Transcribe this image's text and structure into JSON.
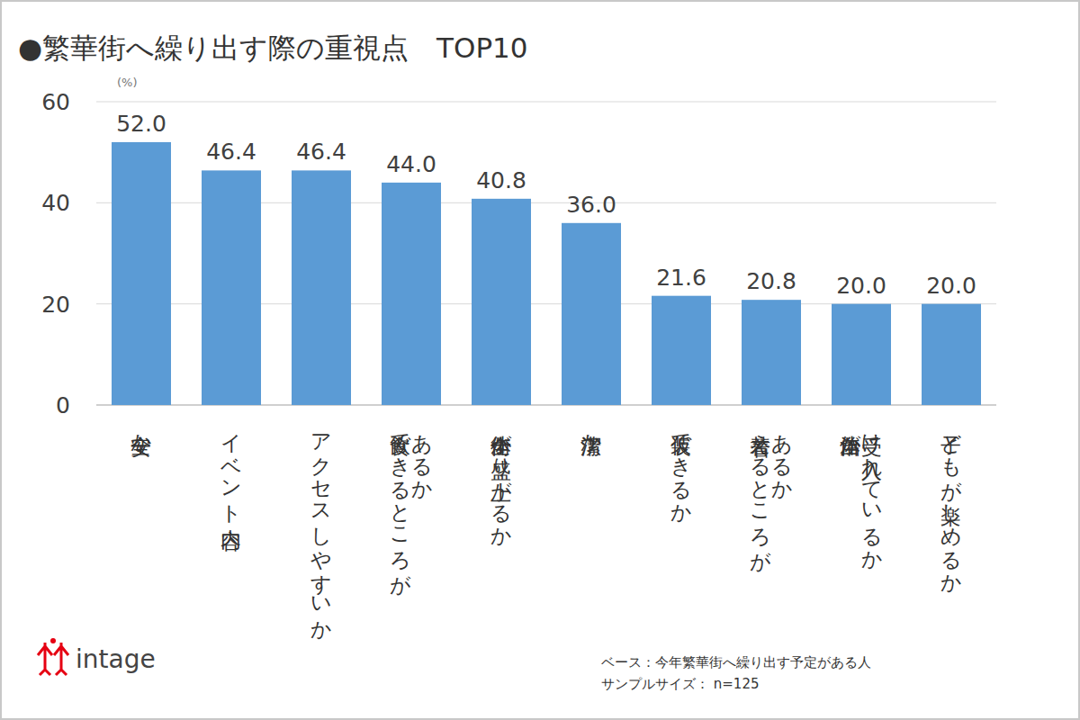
{
  "chart_data": {
    "type": "bar",
    "title": "●繁華街へ繰り出す際の重視点　TOP10",
    "ylabel": "(%)",
    "categories": [
      "安全か",
      "イベント内容",
      "アクセスしやすいか",
      "飲食できるところが\nあるか",
      "街全体が盛り上がるか",
      "清潔か",
      "仮装できるか",
      "着替えるところが\nあるか",
      "自治体が\n受け入れているか",
      "子どもが楽しめるか"
    ],
    "values": [
      52,
      46.4,
      46.4,
      44,
      40.8,
      36,
      21.6,
      20.8,
      20,
      20
    ],
    "value_labels": [
      "52.0",
      "46.4",
      "46.4",
      "44.0",
      "40.8",
      "36.0",
      "21.6",
      "20.8",
      "20.0",
      "20.0"
    ],
    "color": "#5b9bd5",
    "ylim": [
      0,
      60
    ],
    "yticks": [
      0,
      20,
      40,
      60
    ],
    "grid": true,
    "data_labels": true,
    "note": [
      "ベース：今年繁華街へ繰り出す予定がある人",
      "サンプルサイズ： n=125"
    ],
    "source": "intage"
  }
}
